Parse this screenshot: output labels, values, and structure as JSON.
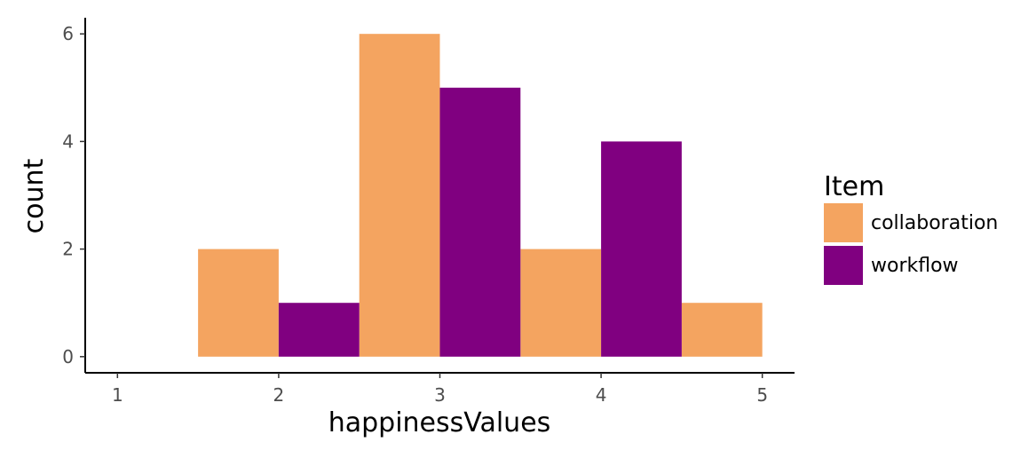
{
  "chart_data": {
    "type": "bar",
    "title": "",
    "xlabel": "happinessValues",
    "ylabel": "count",
    "x_ticks": [
      1,
      2,
      3,
      4,
      5
    ],
    "y_ticks": [
      0,
      2,
      4,
      6
    ],
    "xlim": [
      0.8,
      5.2
    ],
    "ylim": [
      -0.3,
      6.3
    ],
    "grid": false,
    "legend": {
      "title": "Item",
      "placement": "right"
    },
    "bar_width": 0.5,
    "series": [
      {
        "name": "collaboration",
        "color": "#f4a460",
        "bars": [
          {
            "x0": 1.5,
            "x1": 2.0,
            "count": 2
          },
          {
            "x0": 2.5,
            "x1": 3.0,
            "count": 6
          },
          {
            "x0": 3.5,
            "x1": 4.0,
            "count": 2
          },
          {
            "x0": 4.5,
            "x1": 5.0,
            "count": 1
          }
        ]
      },
      {
        "name": "workflow",
        "color": "#800080",
        "bars": [
          {
            "x0": 2.0,
            "x1": 2.5,
            "count": 1
          },
          {
            "x0": 3.0,
            "x1": 3.5,
            "count": 5
          },
          {
            "x0": 4.0,
            "x1": 4.5,
            "count": 4
          }
        ]
      }
    ]
  }
}
